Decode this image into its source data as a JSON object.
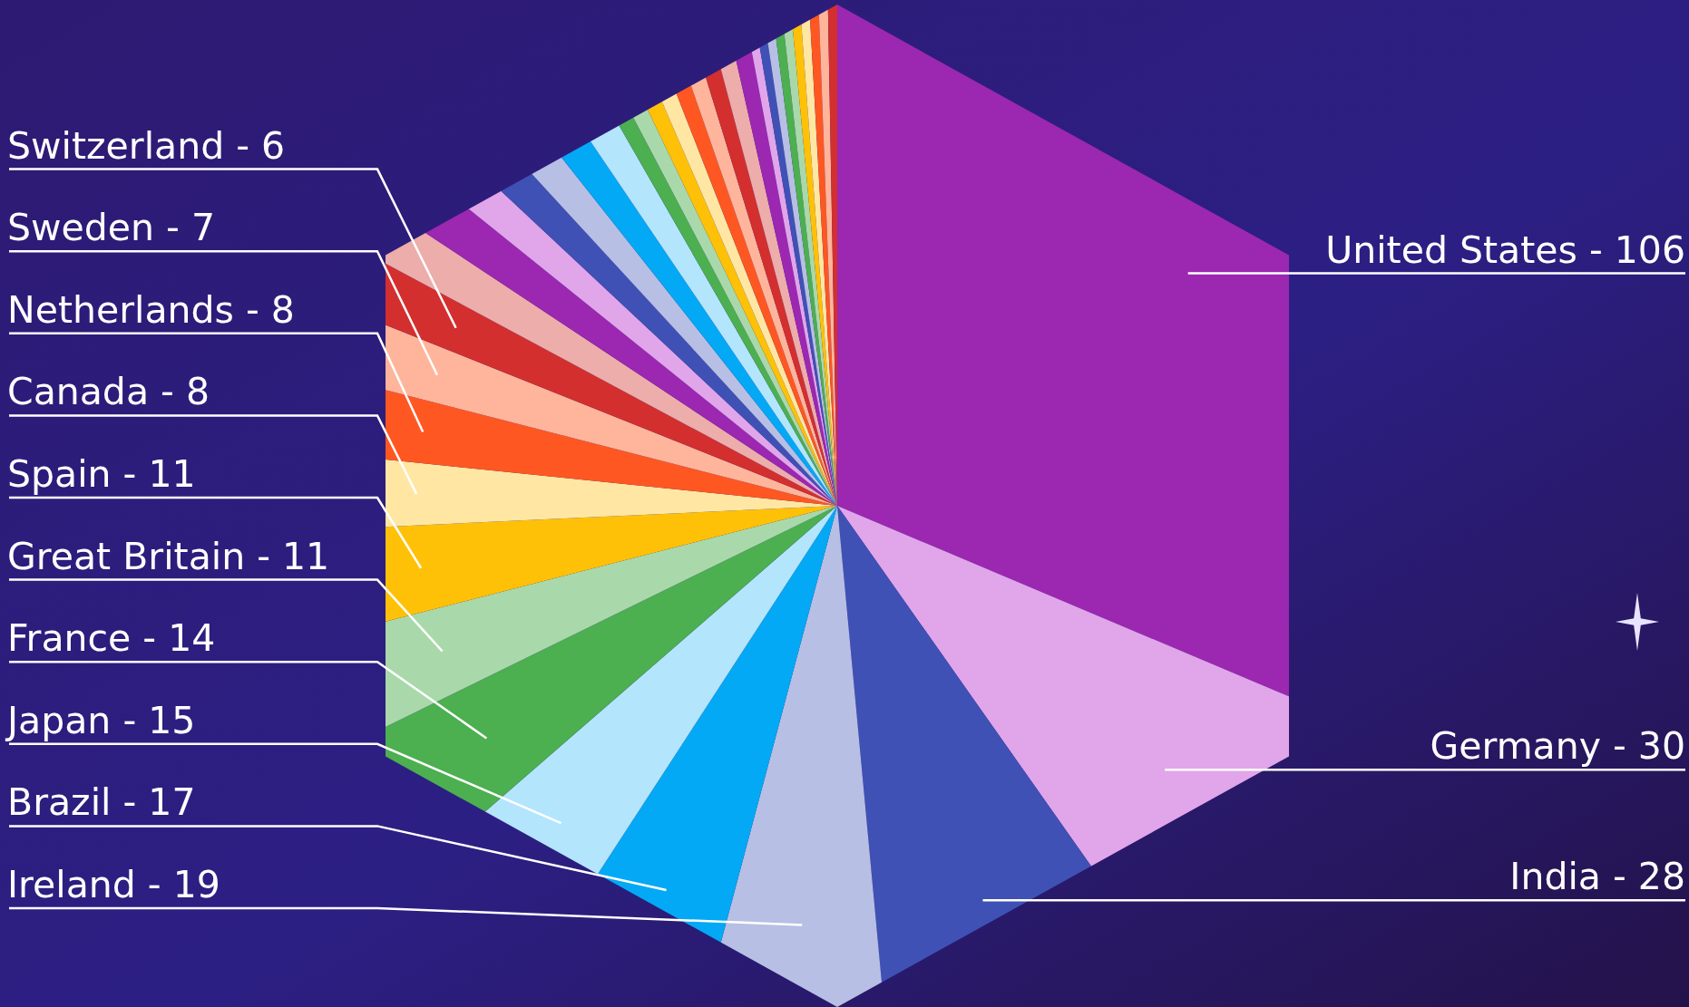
{
  "chart_data": {
    "type": "pie",
    "categories": [
      "United States -",
      "Germany -",
      "India -",
      "Ireland -",
      "Brazil -",
      "Japan -",
      "France -",
      "Great Britain -",
      "Spain -",
      "Canada -",
      "Netherlands -",
      "Sweden -",
      "Switzerland -",
      null,
      null,
      null,
      null,
      null,
      null,
      null,
      null,
      null,
      null,
      null,
      null,
      null,
      null,
      null,
      null,
      null,
      null,
      null,
      null,
      null,
      null,
      null,
      null,
      null,
      null
    ],
    "values": [
      106,
      30,
      28,
      19,
      17,
      15,
      14,
      11,
      11,
      8,
      8,
      7,
      6,
      5,
      5,
      4,
      4,
      4,
      4,
      4,
      2,
      2,
      2,
      2,
      2,
      2,
      2,
      2,
      2,
      1,
      1,
      1,
      1,
      1,
      1,
      1,
      1,
      1,
      1
    ],
    "colors": [
      "#9c27b0",
      "#e1a5ea",
      "#3f51b5",
      "#b7bfe4",
      "#03a9f4",
      "#b3e5fc",
      "#4caf50",
      "#a9d9aa",
      "#ffc107",
      "#ffe7a3",
      "#ff5722",
      "#ffb59b",
      "#d32f2f",
      "#ecadab",
      "#9c27b0",
      "#e1a5ea",
      "#3f51b5",
      "#b7bfe4",
      "#03a9f4",
      "#b3e5fc",
      "#4caf50",
      "#a9d9aa",
      "#ffc107",
      "#ffe7a3",
      "#ff5722",
      "#ffb59b",
      "#d32f2f",
      "#ecadab",
      "#9c27b0",
      "#e1a5ea",
      "#3f51b5",
      "#b7bfe4",
      "#4caf50",
      "#a9d9aa",
      "#ffc107",
      "#ffe7a3",
      "#ff5722",
      "#ffb59b",
      "#d32f2f"
    ],
    "value_labels": [
      "106",
      "30",
      "28",
      "19",
      "17",
      "15",
      "14",
      "11",
      "11",
      "8",
      "8",
      "7",
      "6",
      null,
      null,
      null,
      null,
      null,
      null,
      null,
      null,
      null,
      null,
      null,
      null,
      null,
      null,
      null,
      null,
      null,
      null,
      null,
      null,
      null,
      null,
      null,
      null,
      null,
      null
    ]
  }
}
